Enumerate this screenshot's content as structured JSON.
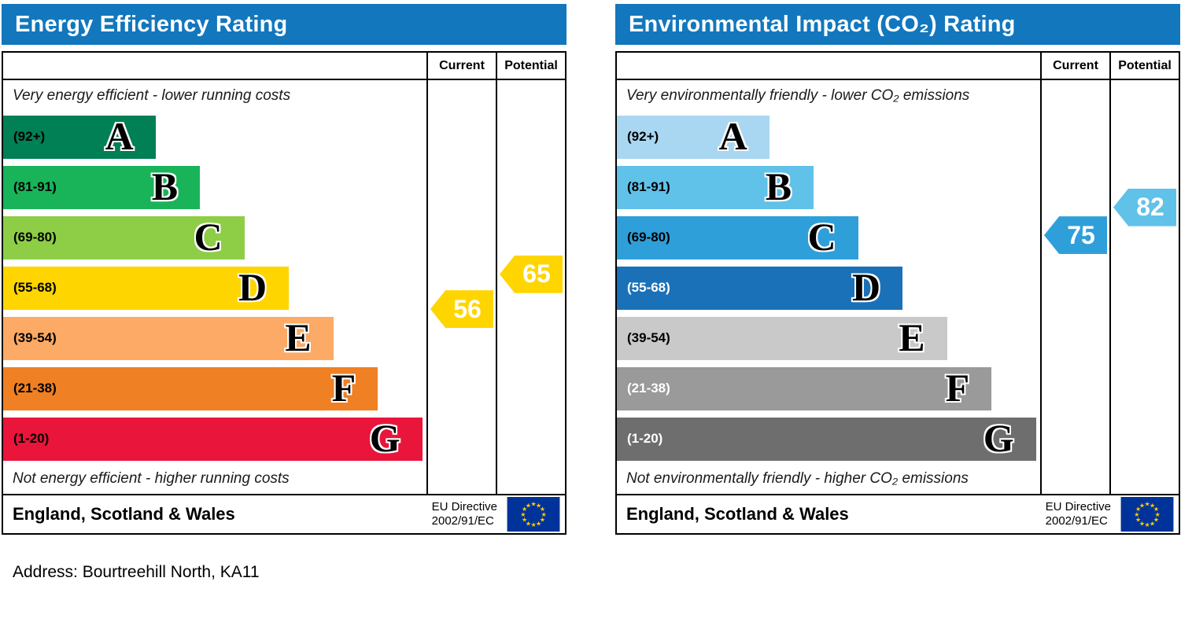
{
  "address_line": "Address: Bourtreehill North, KA11",
  "colors": {
    "title_bar": "#1277bd",
    "table_border": "#000000",
    "eu_flag_background": "#003399",
    "eu_flag_stars": "#ffcc00"
  },
  "chart_data": [
    {
      "type": "bar",
      "title": "Energy Efficiency Rating",
      "col_current": "Current",
      "col_potential": "Potential",
      "top_caption": "Very energy efficient - lower running costs",
      "bottom_caption": "Not energy efficient - higher running costs",
      "footer_region": "England, Scotland & Wales",
      "footer_directive_line1": "EU Directive",
      "footer_directive_line2": "2002/91/EC",
      "bands": [
        {
          "letter": "A",
          "range_label": "(92+)",
          "min": 92,
          "max": 100,
          "color": "#008054",
          "range_text_color": "#000000"
        },
        {
          "letter": "B",
          "range_label": "(81-91)",
          "min": 81,
          "max": 91,
          "color": "#19b459",
          "range_text_color": "#000000"
        },
        {
          "letter": "C",
          "range_label": "(69-80)",
          "min": 69,
          "max": 80,
          "color": "#8dce46",
          "range_text_color": "#000000"
        },
        {
          "letter": "D",
          "range_label": "(55-68)",
          "min": 55,
          "max": 68,
          "color": "#ffd500",
          "range_text_color": "#000000"
        },
        {
          "letter": "E",
          "range_label": "(39-54)",
          "min": 39,
          "max": 54,
          "color": "#fcaa65",
          "range_text_color": "#000000"
        },
        {
          "letter": "F",
          "range_label": "(21-38)",
          "min": 21,
          "max": 38,
          "color": "#ef8023",
          "range_text_color": "#000000"
        },
        {
          "letter": "G",
          "range_label": "(1-20)",
          "min": 1,
          "max": 20,
          "color": "#e9153b",
          "range_text_color": "#000000"
        }
      ],
      "current": {
        "value": 56,
        "color": "#ffd500"
      },
      "potential": {
        "value": 65,
        "color": "#ffd500"
      }
    },
    {
      "type": "bar",
      "title": "Environmental Impact (CO₂) Rating",
      "col_current": "Current",
      "col_potential": "Potential",
      "top_caption": "Very environmentally friendly - lower CO₂ emissions",
      "bottom_caption": "Not environmentally friendly - higher CO₂ emissions",
      "footer_region": "England, Scotland & Wales",
      "footer_directive_line1": "EU Directive",
      "footer_directive_line2": "2002/91/EC",
      "bands": [
        {
          "letter": "A",
          "range_label": "(92+)",
          "min": 92,
          "max": 100,
          "color": "#a9d7f1",
          "range_text_color": "#000000"
        },
        {
          "letter": "B",
          "range_label": "(81-91)",
          "min": 81,
          "max": 91,
          "color": "#60c1e9",
          "range_text_color": "#000000"
        },
        {
          "letter": "C",
          "range_label": "(69-80)",
          "min": 69,
          "max": 80,
          "color": "#2f9fda",
          "range_text_color": "#000000"
        },
        {
          "letter": "D",
          "range_label": "(55-68)",
          "min": 55,
          "max": 68,
          "color": "#1b71b8",
          "range_text_color": "#ffffff"
        },
        {
          "letter": "E",
          "range_label": "(39-54)",
          "min": 39,
          "max": 54,
          "color": "#c9c9c9",
          "range_text_color": "#000000"
        },
        {
          "letter": "F",
          "range_label": "(21-38)",
          "min": 21,
          "max": 38,
          "color": "#9a9a9a",
          "range_text_color": "#ffffff"
        },
        {
          "letter": "G",
          "range_label": "(1-20)",
          "min": 1,
          "max": 20,
          "color": "#6e6e6e",
          "range_text_color": "#ffffff"
        }
      ],
      "current": {
        "value": 75,
        "color": "#2f9fda"
      },
      "potential": {
        "value": 82,
        "color": "#60c1e9"
      }
    }
  ]
}
